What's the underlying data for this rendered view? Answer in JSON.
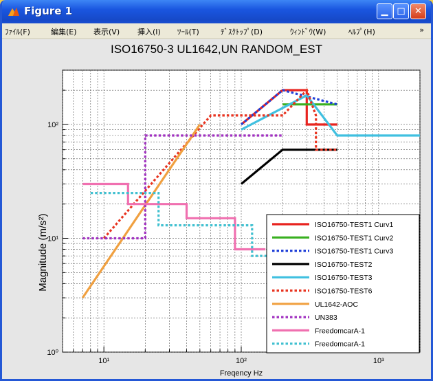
{
  "window": {
    "title": "Figure 1"
  },
  "menu": [
    {
      "label": "ﾌｧｲﾙ(F)"
    },
    {
      "label": "編集(E)"
    },
    {
      "label": "表示(V)"
    },
    {
      "label": "挿入(I)"
    },
    {
      "label": "ﾂｰﾙ(T)"
    },
    {
      "label": "ﾃﾞｽｸﾄｯﾌﾟ(D)"
    },
    {
      "label": "ｳｨﾝﾄﾞｳ(W)"
    },
    {
      "label": "ﾍﾙﾌﾟ(H)"
    }
  ],
  "menu_arrow": "»",
  "colors": {
    "titlebar": "#1a56e0",
    "plot_bg": "#ffffff",
    "figure_bg": "#e6e6e6"
  },
  "chart_data": {
    "type": "line",
    "title": "ISO16750-3 UL1642,UN RANDOM_EST",
    "xlabel": "Freqency  Hz",
    "ylabel": "Magnitude  (m/s²)",
    "xscale": "log",
    "yscale": "log",
    "xlim": [
      5,
      2000
    ],
    "ylim": [
      1,
      300
    ],
    "xticks": [
      {
        "v": 10,
        "label": "10¹"
      },
      {
        "v": 100,
        "label": "10²"
      },
      {
        "v": 1000,
        "label": "10³"
      }
    ],
    "yticks": [
      {
        "v": 1,
        "label": "10⁰"
      },
      {
        "v": 10,
        "label": "10¹"
      },
      {
        "v": 100,
        "label": "10²"
      }
    ],
    "grid": true,
    "legend_position": "bottom-right",
    "series": [
      {
        "name": "ISO16750-TEST1 Curv1",
        "color": "#e8231f",
        "dash": "solid",
        "x": [
          100,
          200,
          300,
          300,
          500
        ],
        "y": [
          100,
          200,
          200,
          100,
          100
        ]
      },
      {
        "name": "ISO16750-TEST1 Curv2",
        "color": "#39b020",
        "dash": "solid",
        "x": [
          200,
          500
        ],
        "y": [
          150,
          150
        ]
      },
      {
        "name": "ISO16750-TEST1 Curv3",
        "color": "#2040d8",
        "dash": "dot",
        "x": [
          100,
          200,
          500
        ],
        "y": [
          100,
          200,
          150
        ]
      },
      {
        "name": "ISO16750-TEST2",
        "color": "#000000",
        "dash": "solid",
        "x": [
          100,
          200,
          500
        ],
        "y": [
          30,
          60,
          60
        ]
      },
      {
        "name": "ISO16750-TEST3",
        "color": "#40c0e0",
        "dash": "solid",
        "x": [
          100,
          300,
          500,
          2000
        ],
        "y": [
          90,
          180,
          80,
          80
        ]
      },
      {
        "name": "ISO16750-TEST6",
        "color": "#e83420",
        "dash": "dot",
        "x": [
          10,
          60,
          200,
          300,
          350,
          350,
          500
        ],
        "y": [
          10,
          120,
          120,
          200,
          120,
          60,
          60
        ]
      },
      {
        "name": "UL1642-AOC",
        "color": "#f0a040",
        "dash": "solid",
        "x": [
          7,
          50
        ],
        "y": [
          3,
          100
        ]
      },
      {
        "name": "UN383",
        "color": "#a030c0",
        "dash": "dot",
        "x": [
          7,
          20,
          20,
          100,
          100,
          200
        ],
        "y": [
          10,
          10,
          80,
          80,
          80,
          80
        ]
      },
      {
        "name": "FreedomcarA-1",
        "color": "#f070b0",
        "dash": "solid",
        "x": [
          7,
          15,
          15,
          40,
          40,
          90,
          90,
          150
        ],
        "y": [
          30,
          30,
          20,
          20,
          15,
          15,
          8,
          8
        ]
      },
      {
        "name": "FreedomcarA-1",
        "color": "#40c0d0",
        "dash": "dot",
        "x": [
          8,
          25,
          25,
          120,
          120,
          200
        ],
        "y": [
          25,
          25,
          13,
          13,
          7,
          7
        ]
      }
    ]
  }
}
